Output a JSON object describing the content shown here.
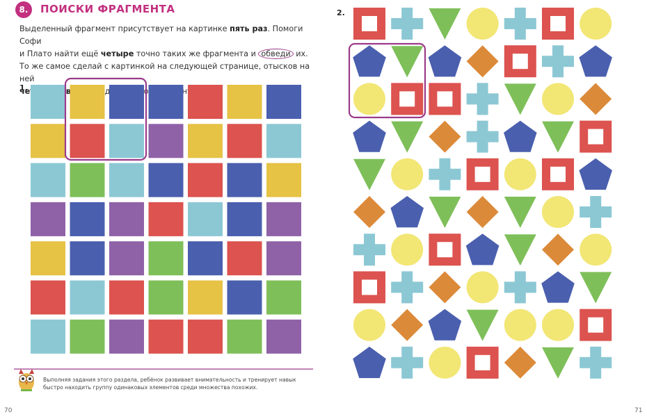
{
  "header": {
    "number": "8.",
    "title": "ПОИСКИ ФРАГМЕНТА"
  },
  "instructions": {
    "lines": [
      [
        {
          "text": "Выделенный фрагмент присутствует на картинке "
        },
        {
          "text": "пять раз",
          "style": "bold"
        },
        {
          "text": ". Помоги Софи"
        }
      ],
      [
        {
          "text": "и Плато найти ещё "
        },
        {
          "text": "четыре",
          "style": "bold"
        },
        {
          "text": " точно таких же фрагмента и "
        },
        {
          "text": "обведи",
          "style": "circled"
        },
        {
          "text": " их."
        }
      ],
      [
        {
          "text": "То же самое сделай с картинкой на следующей странице, отысков на ней"
        }
      ],
      [
        {
          "text": "четыре повтора",
          "style": "bold"
        },
        {
          "text": " выделенного фрагмента."
        }
      ]
    ]
  },
  "task1": {
    "label": "1."
  },
  "task2": {
    "label": "2."
  },
  "footer": {
    "note": "Выполняя задания этого раздела, ребёнок развивает внимательность и тренирует навык быстро находить группу одинаковых элементов среди множества похожих."
  },
  "page_numbers": {
    "left": "70",
    "right": "71"
  }
}
